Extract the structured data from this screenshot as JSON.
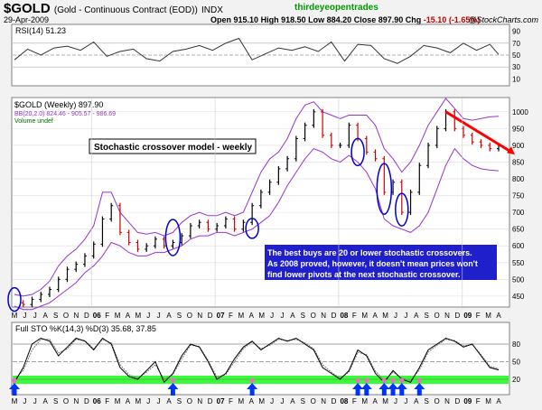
{
  "header": {
    "symbol": "$GOLD",
    "description": "(Gold - Continuous Contract (EOD))",
    "exchange": "INDX",
    "date": "29-Apr-2009",
    "open_label": "Open",
    "open": "915.10",
    "high_label": "High",
    "high": "918.50",
    "low_label": "Low",
    "low": "884.20",
    "close_label": "Close",
    "close": "897.90",
    "chg_label": "Chg",
    "chg": "-15.10 (-1.65%)",
    "watermark": "thirdeyeopentrades",
    "copyright": "@StockCharts.com"
  },
  "rsi_panel": {
    "label": "RSI(14) 51.23",
    "ticks": [
      "90",
      "70",
      "50",
      "30",
      "10"
    ]
  },
  "price_panel": {
    "legend_price": "$GOLD (Weekly) 897.90",
    "legend_bb": "BB(20,2.0) 824.46 - 905.57 - 986.69",
    "legend_volume": "Volume undef",
    "ticks": [
      "1000",
      "950",
      "900",
      "850",
      "800",
      "750",
      "700",
      "650",
      "600",
      "550",
      "500",
      "450"
    ],
    "title_box": "Stochastic crossover model - weekly",
    "note_lines": [
      "The best buys are 20 or lower stochastic crossovers.",
      "As 2008 proved, however, it doesn't mean prices won't",
      "find lower pivots at the next stochastic crossover."
    ]
  },
  "time_axis": [
    "M",
    "J",
    "J",
    "A",
    "S",
    "O",
    "N",
    "D",
    "06",
    "F",
    "M",
    "A",
    "M",
    "J",
    "J",
    "A",
    "S",
    "O",
    "N",
    "D",
    "07",
    "F",
    "M",
    "A",
    "M",
    "J",
    "J",
    "A",
    "S",
    "O",
    "N",
    "D",
    "08",
    "F",
    "M",
    "A",
    "M",
    "J",
    "J",
    "A",
    "S",
    "O",
    "N",
    "D",
    "09",
    "F",
    "M",
    "A"
  ],
  "sto_panel": {
    "label": "Full STO %K(14,3) %D(3) 35.68, 37.85",
    "ticks": [
      "80",
      "50",
      "20"
    ]
  },
  "colors": {
    "price_up": "#000000",
    "price_down": "#cc0000",
    "bollinger": "#9933cc",
    "annotation": "#0000cc",
    "trendline": "#ff0000",
    "oversold_band": "#33ff33",
    "buy_arrow": "#0033ff"
  },
  "chart_data": [
    {
      "type": "line",
      "name": "RSI(14)",
      "ylim": [
        0,
        100
      ],
      "x": [
        0,
        3,
        6,
        9,
        12,
        15,
        18,
        21,
        24,
        27,
        30,
        33,
        36,
        39,
        42,
        45,
        48,
        51,
        54,
        57,
        60,
        63,
        66,
        69,
        72,
        75,
        78,
        81,
        84,
        87,
        90,
        93,
        96,
        99,
        102,
        105,
        108,
        110
      ],
      "values": [
        42,
        60,
        50,
        62,
        65,
        58,
        72,
        48,
        56,
        60,
        44,
        40,
        56,
        60,
        66,
        58,
        70,
        78,
        42,
        52,
        62,
        58,
        64,
        56,
        72,
        40,
        68,
        66,
        44,
        36,
        48,
        66,
        62,
        54,
        70,
        58,
        68,
        51
      ]
    },
    {
      "type": "line",
      "name": "$GOLD (Weekly)",
      "ylim": [
        420,
        1040
      ],
      "x": [
        0,
        2,
        4,
        6,
        8,
        10,
        12,
        14,
        16,
        18,
        20,
        22,
        24,
        26,
        28,
        30,
        32,
        34,
        36,
        38,
        40,
        42,
        44,
        46,
        48,
        50,
        52,
        54,
        56,
        58,
        60,
        62,
        64,
        66,
        68,
        70,
        72,
        74,
        76,
        78,
        80,
        82,
        84,
        86,
        88,
        90,
        92,
        94,
        96,
        98,
        100,
        102,
        104,
        106,
        108,
        110
      ],
      "values": [
        430,
        425,
        440,
        455,
        470,
        500,
        530,
        545,
        570,
        605,
        680,
        720,
        640,
        610,
        590,
        600,
        620,
        600,
        610,
        630,
        660,
        670,
        650,
        660,
        680,
        650,
        670,
        720,
        760,
        790,
        830,
        860,
        920,
        960,
        1000,
        930,
        900,
        900,
        960,
        920,
        880,
        860,
        760,
        790,
        700,
        760,
        840,
        900,
        950,
        1000,
        950,
        930,
        910,
        900,
        890,
        898
      ],
      "upper_band": [
        455,
        450,
        455,
        470,
        495,
        540,
        570,
        590,
        620,
        660,
        760,
        760,
        700,
        670,
        640,
        635,
        640,
        630,
        640,
        670,
        690,
        700,
        690,
        690,
        700,
        690,
        700,
        760,
        820,
        860,
        880,
        920,
        980,
        1020,
        1030,
        1000,
        990,
        980,
        990,
        990,
        990,
        960,
        890,
        860,
        820,
        850,
        900,
        960,
        1000,
        1040,
        1010,
        980,
        975,
        980,
        985,
        987
      ],
      "lower_band": [
        420,
        410,
        410,
        420,
        430,
        450,
        470,
        490,
        520,
        540,
        570,
        610,
        600,
        580,
        570,
        570,
        580,
        580,
        590,
        600,
        620,
        630,
        630,
        640,
        640,
        630,
        640,
        650,
        670,
        690,
        730,
        780,
        820,
        860,
        890,
        880,
        860,
        850,
        870,
        850,
        820,
        770,
        680,
        660,
        650,
        640,
        660,
        700,
        770,
        840,
        890,
        860,
        840,
        830,
        826,
        824
      ],
      "trendline": {
        "x": [
          98,
          110
        ],
        "values": [
          1000,
          910
        ]
      }
    },
    {
      "type": "line",
      "name": "Full STO %K(14,3) %D(3)",
      "ylim": [
        0,
        100
      ],
      "x": [
        0,
        2,
        4,
        6,
        8,
        10,
        12,
        14,
        16,
        18,
        20,
        22,
        24,
        26,
        28,
        30,
        32,
        34,
        36,
        38,
        40,
        42,
        44,
        46,
        48,
        50,
        52,
        54,
        56,
        58,
        60,
        62,
        64,
        66,
        68,
        70,
        72,
        74,
        76,
        78,
        80,
        82,
        84,
        86,
        88,
        90,
        92,
        94,
        96,
        98,
        100,
        102,
        104,
        106,
        108,
        110
      ],
      "values": [
        15,
        40,
        80,
        90,
        85,
        60,
        75,
        90,
        85,
        70,
        90,
        80,
        40,
        25,
        20,
        35,
        50,
        15,
        30,
        60,
        80,
        75,
        50,
        20,
        30,
        55,
        75,
        85,
        70,
        80,
        90,
        85,
        90,
        80,
        70,
        40,
        30,
        20,
        35,
        70,
        60,
        30,
        15,
        35,
        20,
        15,
        40,
        70,
        80,
        90,
        85,
        75,
        80,
        60,
        40,
        36
      ],
      "d_values": [
        20,
        35,
        70,
        88,
        88,
        65,
        72,
        88,
        86,
        72,
        88,
        82,
        45,
        28,
        22,
        32,
        45,
        20,
        28,
        55,
        78,
        76,
        52,
        24,
        28,
        50,
        72,
        84,
        72,
        78,
        88,
        86,
        88,
        82,
        72,
        45,
        32,
        22,
        32,
        66,
        62,
        34,
        18,
        32,
        22,
        18,
        36,
        66,
        78,
        88,
        86,
        77,
        79,
        62,
        42,
        38
      ],
      "buy_signals_x": [
        0,
        36,
        54,
        78,
        80,
        84,
        86,
        88,
        92
      ]
    }
  ]
}
